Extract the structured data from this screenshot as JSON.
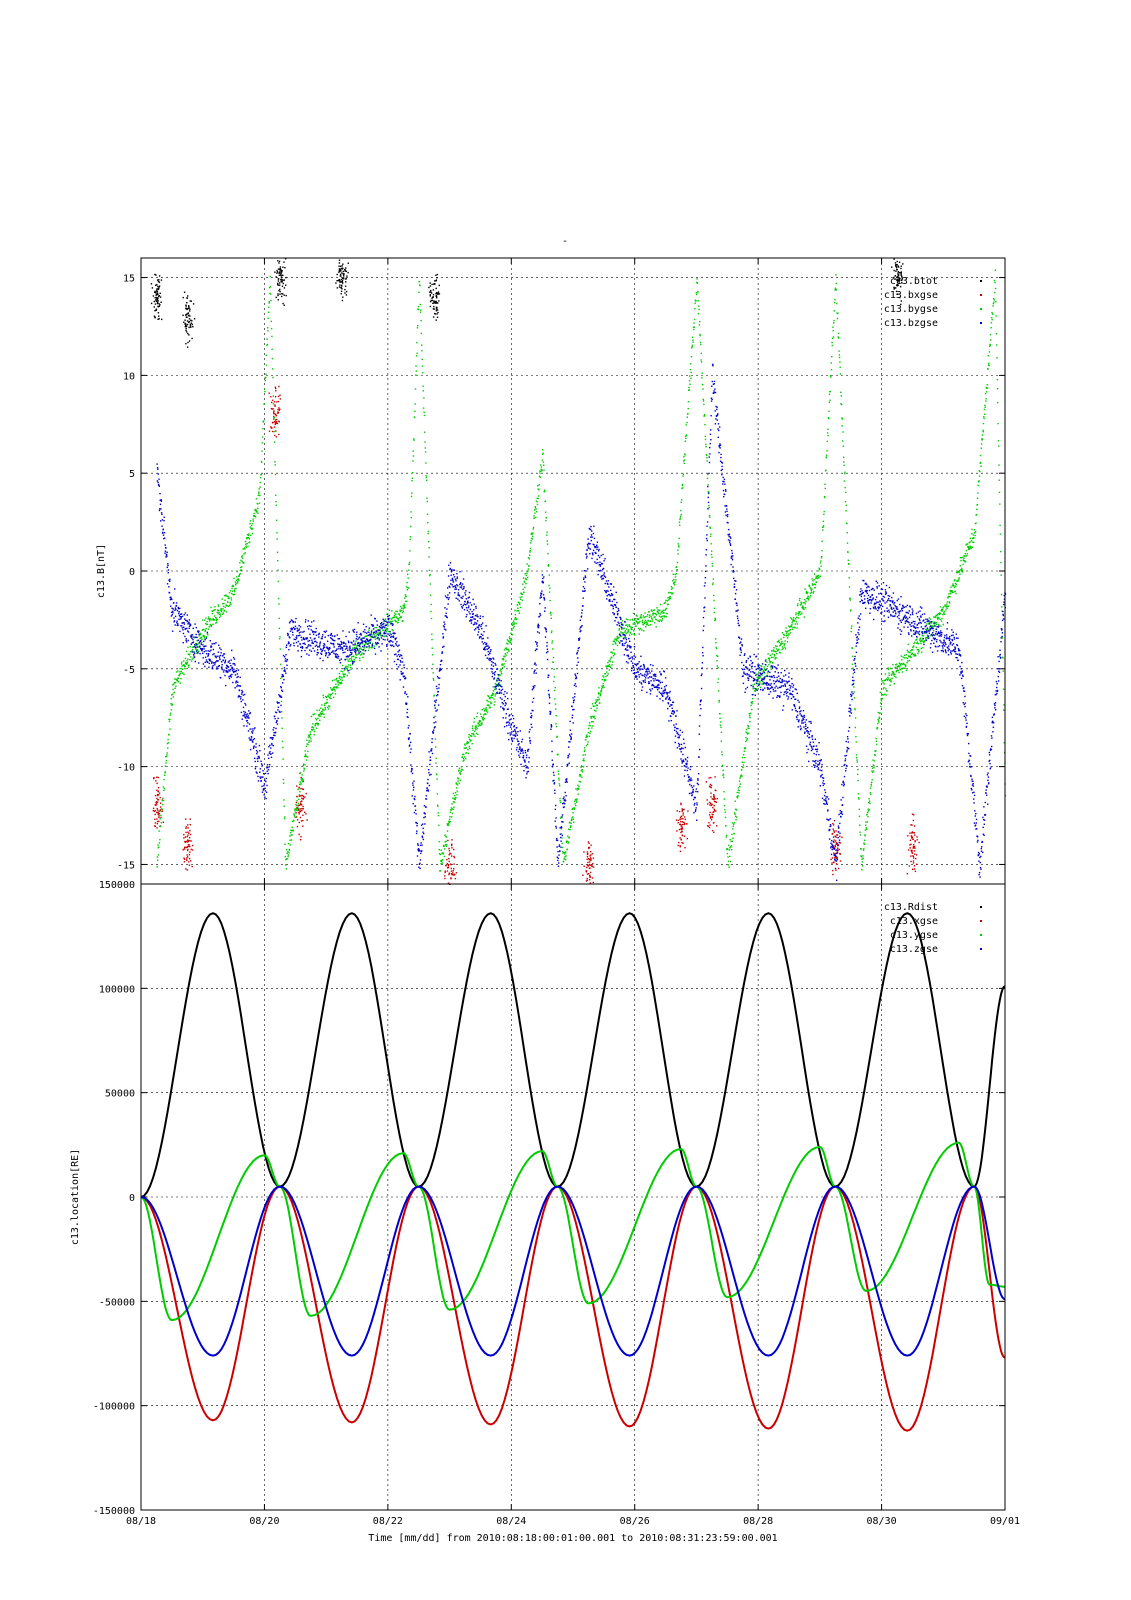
{
  "page": {
    "title_mark": "-",
    "xlabel": "Time [mm/dd]  from 2010:08:18:00:01:00.001  to  2010:08:31:23:59:00.001"
  },
  "chart_data": [
    {
      "type": "scatter",
      "ylabel": "c13.B[nT]",
      "ylim": [
        -16,
        16
      ],
      "xlim": [
        "08/18",
        "09/01"
      ],
      "yticks": [
        -15,
        -10,
        -5,
        0,
        5,
        10,
        15
      ],
      "xticks": [],
      "grid": true,
      "legend_position": "top-right",
      "colors": {
        "c13.btot": "#000000",
        "c13.bxgse": "#cc0000",
        "c13.bygse": "#00cc00",
        "c13.bzgse": "#0000cc"
      },
      "series": [
        {
          "name": "c13.btot",
          "color": "#000000",
          "legend_label": "c13.btot"
        },
        {
          "name": "c13.bxgse",
          "color": "#cc0000",
          "legend_label": "c13.bxgse"
        },
        {
          "name": "c13.bygse",
          "color": "#00cc00",
          "legend_label": "c13.bygse"
        },
        {
          "name": "c13.bzgse",
          "color": "#0000cc",
          "legend_label": "c13.bzgse"
        }
      ],
      "approx_profiles": {
        "bygse": [
          {
            "x": "08/18 06:00",
            "y": -15
          },
          {
            "x": "08/18 12:00",
            "y": -6
          },
          {
            "x": "08/19 00:00",
            "y": -3
          },
          {
            "x": "08/19 12:00",
            "y": -1
          },
          {
            "x": "08/19 22:00",
            "y": 4
          },
          {
            "x": "08/20 02:00",
            "y": 15
          },
          {
            "x": "08/20 08:00",
            "y": -15
          },
          {
            "x": "08/20 18:00",
            "y": -8
          },
          {
            "x": "08/21 12:00",
            "y": -4
          },
          {
            "x": "08/22 06:00",
            "y": -2
          },
          {
            "x": "08/22 08:00",
            "y": 0
          },
          {
            "x": "08/22 12:00",
            "y": 15
          },
          {
            "x": "08/22 20:00",
            "y": -15
          },
          {
            "x": "08/23 06:00",
            "y": -9
          },
          {
            "x": "08/23 18:00",
            "y": -6
          },
          {
            "x": "08/24 06:00",
            "y": 0
          },
          {
            "x": "08/24 12:00",
            "y": 6
          },
          {
            "x": "08/24 20:00",
            "y": -15
          },
          {
            "x": "08/25 06:00",
            "y": -8
          },
          {
            "x": "08/25 18:00",
            "y": -3
          },
          {
            "x": "08/26 12:00",
            "y": -2
          },
          {
            "x": "08/26 16:00",
            "y": 0
          },
          {
            "x": "08/27 00:00",
            "y": 15
          },
          {
            "x": "08/27 12:00",
            "y": -15
          },
          {
            "x": "08/27 22:00",
            "y": -6
          },
          {
            "x": "08/28 12:00",
            "y": -3
          },
          {
            "x": "08/29 00:00",
            "y": 0
          },
          {
            "x": "08/29 06:00",
            "y": 15
          },
          {
            "x": "08/29 16:00",
            "y": -15
          },
          {
            "x": "08/30 00:00",
            "y": -6
          },
          {
            "x": "08/30 12:00",
            "y": -4
          },
          {
            "x": "08/31 00:00",
            "y": -2
          },
          {
            "x": "08/31 12:00",
            "y": 2
          },
          {
            "x": "08/31 20:00",
            "y": 15
          },
          {
            "x": "09/01 00:00",
            "y": -12
          }
        ],
        "bzgse": [
          {
            "x": "08/18 06:00",
            "y": 5
          },
          {
            "x": "08/18 12:00",
            "y": -2
          },
          {
            "x": "08/19 00:00",
            "y": -4
          },
          {
            "x": "08/19 12:00",
            "y": -5
          },
          {
            "x": "08/19 18:00",
            "y": -8
          },
          {
            "x": "08/20 00:00",
            "y": -11
          },
          {
            "x": "08/20 10:00",
            "y": -3
          },
          {
            "x": "08/21 06:00",
            "y": -4
          },
          {
            "x": "08/22 00:00",
            "y": -3
          },
          {
            "x": "08/22 06:00",
            "y": -5
          },
          {
            "x": "08/22 12:00",
            "y": -15
          },
          {
            "x": "08/23 00:00",
            "y": 0
          },
          {
            "x": "08/23 12:00",
            "y": -3
          },
          {
            "x": "08/24 00:00",
            "y": -8
          },
          {
            "x": "08/24 06:00",
            "y": -10
          },
          {
            "x": "08/24 12:00",
            "y": 0
          },
          {
            "x": "08/24 18:00",
            "y": -15
          },
          {
            "x": "08/25 06:00",
            "y": 2
          },
          {
            "x": "08/26 00:00",
            "y": -5
          },
          {
            "x": "08/26 12:00",
            "y": -6
          },
          {
            "x": "08/27 00:00",
            "y": -12
          },
          {
            "x": "08/27 06:00",
            "y": 10
          },
          {
            "x": "08/27 18:00",
            "y": -5
          },
          {
            "x": "08/28 12:00",
            "y": -6
          },
          {
            "x": "08/29 00:00",
            "y": -10
          },
          {
            "x": "08/29 06:00",
            "y": -15
          },
          {
            "x": "08/29 16:00",
            "y": -1
          },
          {
            "x": "08/30 06:00",
            "y": -2
          },
          {
            "x": "08/30 18:00",
            "y": -3
          },
          {
            "x": "08/31 06:00",
            "y": -4
          },
          {
            "x": "08/31 14:00",
            "y": -15
          },
          {
            "x": "09/01 00:00",
            "y": -1
          }
        ],
        "bxgse_bursts": [
          {
            "x": "08/18 06:00",
            "y": -12
          },
          {
            "x": "08/18 18:00",
            "y": -14
          },
          {
            "x": "08/20 04:00",
            "y": 8
          },
          {
            "x": "08/20 14:00",
            "y": -12
          },
          {
            "x": "08/23 00:00",
            "y": -15
          },
          {
            "x": "08/25 06:00",
            "y": -15
          },
          {
            "x": "08/26 18:00",
            "y": -13
          },
          {
            "x": "08/27 06:00",
            "y": -12
          },
          {
            "x": "08/29 06:00",
            "y": -14
          },
          {
            "x": "08/30 12:00",
            "y": -14
          }
        ],
        "btot_bursts": [
          {
            "x": "08/18 06:00",
            "y": 14
          },
          {
            "x": "08/18 18:00",
            "y": 13
          },
          {
            "x": "08/20 06:00",
            "y": 15
          },
          {
            "x": "08/21 06:00",
            "y": 15
          },
          {
            "x": "08/22 18:00",
            "y": 14
          },
          {
            "x": "08/30 06:00",
            "y": 15
          }
        ]
      }
    },
    {
      "type": "line",
      "ylabel": "c13.location[RE]",
      "ylim": [
        -150000,
        150000
      ],
      "xlim": [
        "08/18",
        "09/01"
      ],
      "yticks": [
        -150000,
        -100000,
        -50000,
        0,
        50000,
        100000,
        150000
      ],
      "xticks": [
        "08/18",
        "08/20",
        "08/22",
        "08/24",
        "08/26",
        "08/28",
        "08/30",
        "09/01"
      ],
      "grid": true,
      "legend_position": "top-right",
      "colors": {
        "c13.Rdist": "#000000",
        "c13.xgse": "#cc0000",
        "c13.ygse": "#00cc00",
        "c13.zgse": "#0000cc"
      },
      "series": [
        {
          "name": "c13.Rdist",
          "color": "#000000",
          "legend_label": "c13.Rdist",
          "points": [
            {
              "x": "08/18 00:00",
              "y": 0
            },
            {
              "x": "08/19 04:00",
              "y": 136000
            },
            {
              "x": "08/20 06:00",
              "y": 5000
            },
            {
              "x": "08/21 10:00",
              "y": 136000
            },
            {
              "x": "08/22 12:00",
              "y": 5000
            },
            {
              "x": "08/23 16:00",
              "y": 136000
            },
            {
              "x": "08/24 18:00",
              "y": 5000
            },
            {
              "x": "08/25 22:00",
              "y": 136000
            },
            {
              "x": "08/27 00:00",
              "y": 5000
            },
            {
              "x": "08/28 04:00",
              "y": 136000
            },
            {
              "x": "08/29 06:00",
              "y": 5000
            },
            {
              "x": "08/30 10:00",
              "y": 136000
            },
            {
              "x": "08/31 12:00",
              "y": 5000
            },
            {
              "x": "09/01 00:00",
              "y": 101000
            }
          ]
        },
        {
          "name": "c13.xgse",
          "color": "#cc0000",
          "legend_label": "c13.xgse",
          "points": [
            {
              "x": "08/18 00:00",
              "y": 0
            },
            {
              "x": "08/19 04:00",
              "y": -107000
            },
            {
              "x": "08/20 06:00",
              "y": 5000
            },
            {
              "x": "08/21 10:00",
              "y": -108000
            },
            {
              "x": "08/22 12:00",
              "y": 5000
            },
            {
              "x": "08/23 16:00",
              "y": -109000
            },
            {
              "x": "08/24 18:00",
              "y": 5000
            },
            {
              "x": "08/25 22:00",
              "y": -110000
            },
            {
              "x": "08/27 00:00",
              "y": 5000
            },
            {
              "x": "08/28 04:00",
              "y": -111000
            },
            {
              "x": "08/29 06:00",
              "y": 5000
            },
            {
              "x": "08/30 10:00",
              "y": -112000
            },
            {
              "x": "08/31 12:00",
              "y": 5000
            },
            {
              "x": "09/01 00:00",
              "y": -77000
            }
          ]
        },
        {
          "name": "c13.ygse",
          "color": "#00cc00",
          "legend_label": "c13.ygse",
          "points": [
            {
              "x": "08/18 00:00",
              "y": 0
            },
            {
              "x": "08/18 12:00",
              "y": -59000
            },
            {
              "x": "08/20 00:00",
              "y": 20000
            },
            {
              "x": "08/20 06:00",
              "y": 5000
            },
            {
              "x": "08/20 18:00",
              "y": -57000
            },
            {
              "x": "08/22 06:00",
              "y": 21000
            },
            {
              "x": "08/22 12:00",
              "y": 5000
            },
            {
              "x": "08/23 00:00",
              "y": -54000
            },
            {
              "x": "08/24 12:00",
              "y": 22000
            },
            {
              "x": "08/24 18:00",
              "y": 5000
            },
            {
              "x": "08/25 06:00",
              "y": -51000
            },
            {
              "x": "08/26 18:00",
              "y": 23000
            },
            {
              "x": "08/27 00:00",
              "y": 5000
            },
            {
              "x": "08/27 12:00",
              "y": -48000
            },
            {
              "x": "08/29 00:00",
              "y": 24000
            },
            {
              "x": "08/29 06:00",
              "y": 5000
            },
            {
              "x": "08/29 18:00",
              "y": -45000
            },
            {
              "x": "08/31 06:00",
              "y": 26000
            },
            {
              "x": "08/31 12:00",
              "y": 5000
            },
            {
              "x": "08/31 18:00",
              "y": -42000
            },
            {
              "x": "09/01 00:00",
              "y": -43000
            }
          ]
        },
        {
          "name": "c13.zgse",
          "color": "#0000cc",
          "legend_label": "c13.zgse",
          "points": [
            {
              "x": "08/18 00:00",
              "y": 0
            },
            {
              "x": "08/19 04:00",
              "y": -76000
            },
            {
              "x": "08/20 06:00",
              "y": 5000
            },
            {
              "x": "08/21 10:00",
              "y": -76000
            },
            {
              "x": "08/22 12:00",
              "y": 5000
            },
            {
              "x": "08/23 16:00",
              "y": -76000
            },
            {
              "x": "08/24 18:00",
              "y": 5000
            },
            {
              "x": "08/25 22:00",
              "y": -76000
            },
            {
              "x": "08/27 00:00",
              "y": 5000
            },
            {
              "x": "08/28 04:00",
              "y": -76000
            },
            {
              "x": "08/29 06:00",
              "y": 5000
            },
            {
              "x": "08/30 10:00",
              "y": -76000
            },
            {
              "x": "08/31 12:00",
              "y": 5000
            },
            {
              "x": "09/01 00:00",
              "y": -49000
            }
          ]
        }
      ]
    }
  ]
}
